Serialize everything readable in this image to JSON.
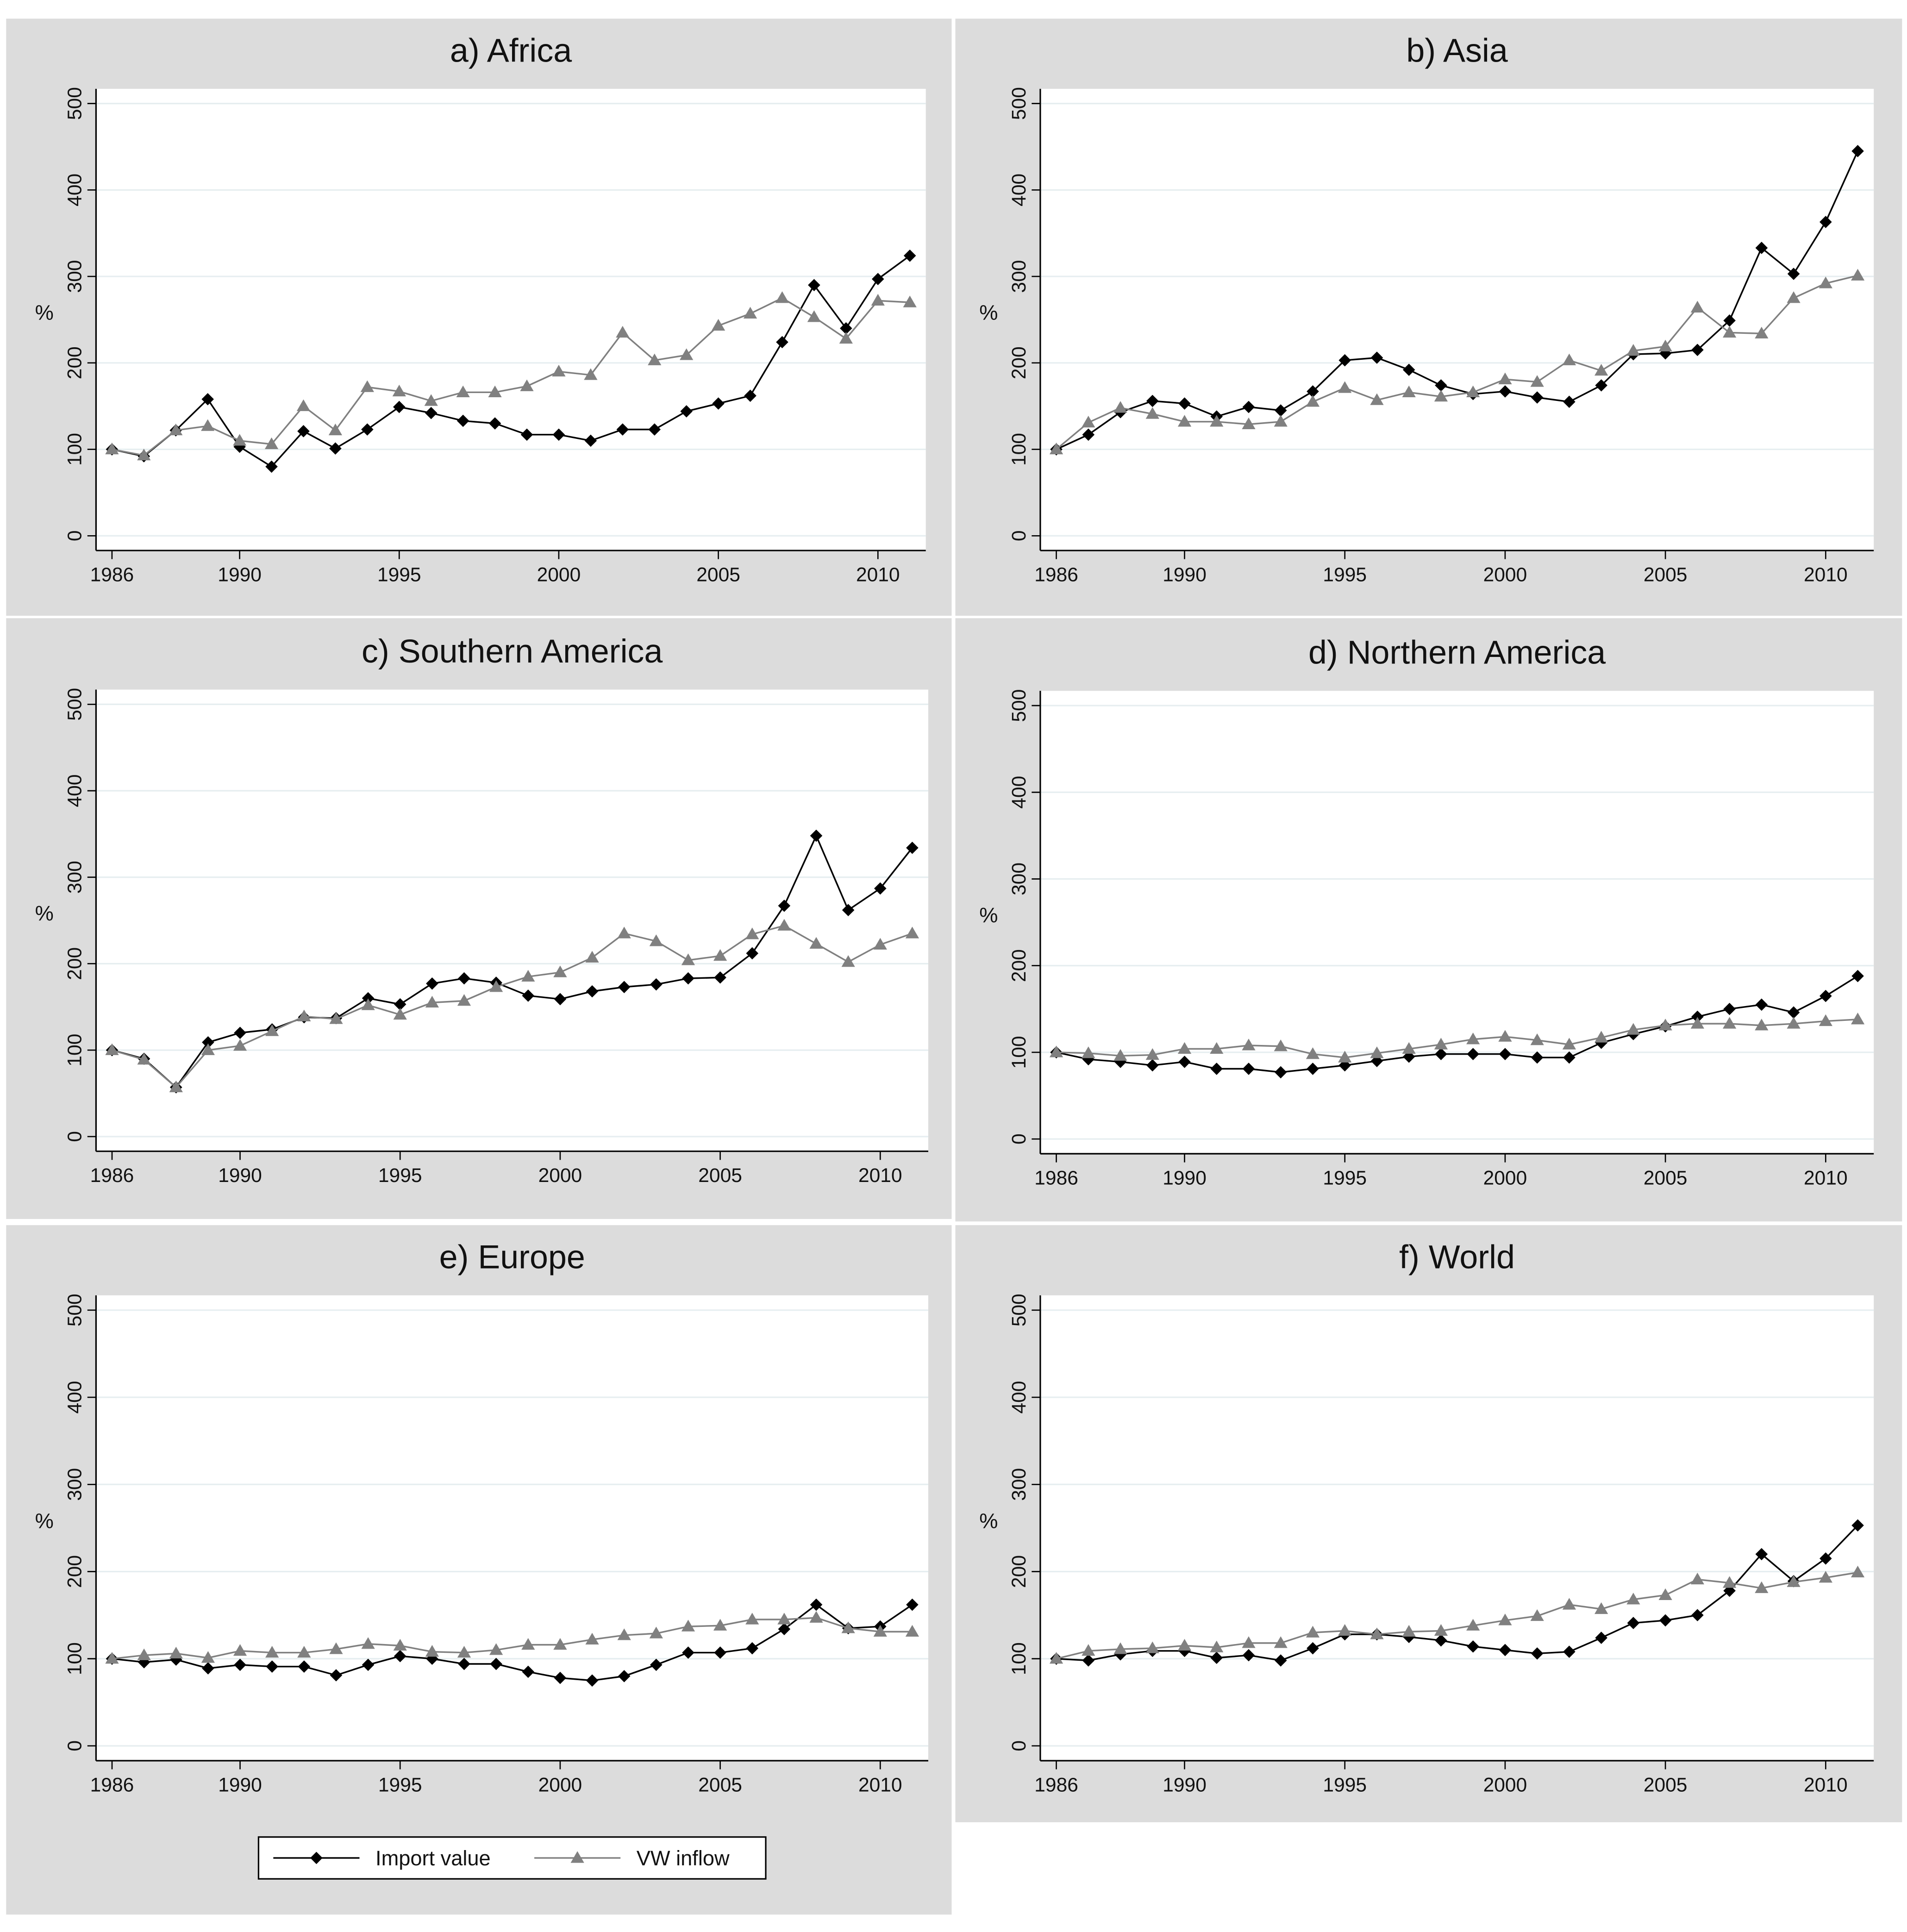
{
  "chart_data": [
    {
      "type": "line",
      "title": "a) Africa",
      "ylabel": "%",
      "legend_position": "bottom",
      "grid": true,
      "x": [
        1986,
        1987,
        1988,
        1989,
        1990,
        1991,
        1992,
        1993,
        1994,
        1995,
        1996,
        1997,
        1998,
        1999,
        2000,
        2001,
        2002,
        2003,
        2004,
        2005,
        2006,
        2007,
        2008,
        2009,
        2010,
        2011
      ],
      "xlim": [
        1985.5,
        2011.5
      ],
      "xticks": [
        1986,
        1990,
        1995,
        2000,
        2005,
        2010
      ],
      "ylim": [
        -17,
        517
      ],
      "yticks": [
        0,
        100,
        200,
        300,
        400,
        500
      ],
      "series": [
        {
          "name": "Import value",
          "color": "#000000",
          "marker": "diamond",
          "values": [
            100,
            92,
            122,
            158,
            103,
            80,
            121,
            101,
            123,
            149,
            142,
            133,
            130,
            117,
            117,
            110,
            123,
            123,
            144,
            153,
            162,
            224,
            290,
            240,
            297,
            324
          ]
        },
        {
          "name": "VW inflow",
          "color": "#808080",
          "marker": "triangle",
          "values": [
            100,
            93,
            122,
            127,
            110,
            106,
            150,
            122,
            172,
            167,
            156,
            166,
            166,
            173,
            190,
            186,
            235,
            203,
            209,
            243,
            257,
            275,
            253,
            228,
            272,
            270
          ]
        }
      ]
    },
    {
      "type": "line",
      "title": "b) Asia",
      "ylabel": "%",
      "grid": true,
      "x": [
        1986,
        1987,
        1988,
        1989,
        1990,
        1991,
        1992,
        1993,
        1994,
        1995,
        1996,
        1997,
        1998,
        1999,
        2000,
        2001,
        2002,
        2003,
        2004,
        2005,
        2006,
        2007,
        2008,
        2009,
        2010,
        2011
      ],
      "xlim": [
        1985.5,
        2011.5
      ],
      "xticks": [
        1986,
        1990,
        1995,
        2000,
        2005,
        2010
      ],
      "ylim": [
        -17,
        517
      ],
      "yticks": [
        0,
        100,
        200,
        300,
        400,
        500
      ],
      "series": [
        {
          "color": "#000000",
          "marker": "diamond",
          "values": [
            100,
            117,
            143,
            156,
            153,
            138,
            149,
            145,
            167,
            203,
            206,
            192,
            174,
            164,
            167,
            160,
            155,
            174,
            210,
            211,
            215,
            249,
            333,
            303,
            363,
            445
          ]
        },
        {
          "color": "#808080",
          "marker": "triangle",
          "values": [
            100,
            131,
            148,
            141,
            132,
            132,
            129,
            132,
            155,
            171,
            157,
            166,
            161,
            166,
            181,
            178,
            203,
            191,
            214,
            219,
            264,
            235,
            234,
            275,
            292,
            301
          ]
        }
      ]
    },
    {
      "type": "line",
      "title": "c) Southern America",
      "ylabel": "%",
      "grid": true,
      "x": [
        1986,
        1987,
        1988,
        1989,
        1990,
        1991,
        1992,
        1993,
        1994,
        1995,
        1996,
        1997,
        1998,
        1999,
        2000,
        2001,
        2002,
        2003,
        2004,
        2005,
        2006,
        2007,
        2008,
        2009,
        2010,
        2011
      ],
      "xlim": [
        1985.5,
        2011.5
      ],
      "xticks": [
        1986,
        1990,
        1995,
        2000,
        2005,
        2010
      ],
      "ylim": [
        -17,
        517
      ],
      "yticks": [
        0,
        100,
        200,
        300,
        400,
        500
      ],
      "series": [
        {
          "color": "#000000",
          "marker": "diamond",
          "values": [
            100,
            90,
            57,
            109,
            120,
            124,
            138,
            137,
            160,
            153,
            177,
            183,
            178,
            163,
            159,
            168,
            173,
            176,
            183,
            184,
            212,
            267,
            348,
            262,
            287,
            334
          ]
        },
        {
          "color": "#808080",
          "marker": "triangle",
          "values": [
            100,
            89,
            57,
            100,
            105,
            122,
            139,
            136,
            152,
            141,
            155,
            157,
            173,
            185,
            190,
            207,
            235,
            226,
            204,
            209,
            234,
            244,
            223,
            202,
            222,
            235
          ]
        }
      ]
    },
    {
      "type": "line",
      "title": "d) Northern America",
      "ylabel": "%",
      "grid": true,
      "x": [
        1986,
        1987,
        1988,
        1989,
        1990,
        1991,
        1992,
        1993,
        1994,
        1995,
        1996,
        1997,
        1998,
        1999,
        2000,
        2001,
        2002,
        2003,
        2004,
        2005,
        2006,
        2007,
        2008,
        2009,
        2010,
        2011
      ],
      "xlim": [
        1985.5,
        2011.5
      ],
      "xticks": [
        1986,
        1990,
        1995,
        2000,
        2005,
        2010
      ],
      "ylim": [
        -17,
        517
      ],
      "yticks": [
        0,
        100,
        200,
        300,
        400,
        500
      ],
      "series": [
        {
          "color": "#000000",
          "marker": "diamond",
          "values": [
            100,
            92,
            89,
            85,
            89,
            81,
            81,
            77,
            81,
            85,
            90,
            95,
            98,
            98,
            98,
            94,
            94,
            111,
            121,
            130,
            141,
            150,
            155,
            146,
            165,
            188
          ]
        },
        {
          "color": "#808080",
          "marker": "triangle",
          "values": [
            100,
            99,
            96,
            97,
            104,
            104,
            108,
            107,
            98,
            94,
            99,
            104,
            109,
            115,
            118,
            114,
            109,
            117,
            126,
            131,
            133,
            133,
            131,
            133,
            136,
            138
          ]
        }
      ]
    },
    {
      "type": "line",
      "title": "e) Europe",
      "ylabel": "%",
      "grid": true,
      "x": [
        1986,
        1987,
        1988,
        1989,
        1990,
        1991,
        1992,
        1993,
        1994,
        1995,
        1996,
        1997,
        1998,
        1999,
        2000,
        2001,
        2002,
        2003,
        2004,
        2005,
        2006,
        2007,
        2008,
        2009,
        2010,
        2011
      ],
      "xlim": [
        1985.5,
        2011.5
      ],
      "xticks": [
        1986,
        1990,
        1995,
        2000,
        2005,
        2010
      ],
      "ylim": [
        -17,
        517
      ],
      "yticks": [
        0,
        100,
        200,
        300,
        400,
        500
      ],
      "series": [
        {
          "color": "#000000",
          "marker": "diamond",
          "values": [
            100,
            96,
            99,
            89,
            93,
            91,
            91,
            81,
            93,
            103,
            100,
            94,
            94,
            85,
            78,
            75,
            80,
            93,
            107,
            107,
            112,
            134,
            162,
            135,
            137,
            162
          ]
        },
        {
          "color": "#808080",
          "marker": "triangle",
          "values": [
            100,
            104,
            106,
            101,
            109,
            107,
            107,
            111,
            117,
            115,
            108,
            107,
            110,
            116,
            116,
            122,
            127,
            129,
            137,
            138,
            145,
            145,
            147,
            135,
            131,
            131
          ]
        }
      ]
    },
    {
      "type": "line",
      "title": "f) World",
      "ylabel": "%",
      "grid": true,
      "x": [
        1986,
        1987,
        1988,
        1989,
        1990,
        1991,
        1992,
        1993,
        1994,
        1995,
        1996,
        1997,
        1998,
        1999,
        2000,
        2001,
        2002,
        2003,
        2004,
        2005,
        2006,
        2007,
        2008,
        2009,
        2010,
        2011
      ],
      "xlim": [
        1985.5,
        2011.5
      ],
      "xticks": [
        1986,
        1990,
        1995,
        2000,
        2005,
        2010
      ],
      "ylim": [
        -17,
        517
      ],
      "yticks": [
        0,
        100,
        200,
        300,
        400,
        500
      ],
      "series": [
        {
          "color": "#000000",
          "marker": "diamond",
          "values": [
            100,
            98,
            105,
            109,
            109,
            101,
            104,
            98,
            112,
            128,
            128,
            125,
            121,
            114,
            110,
            106,
            108,
            124,
            141,
            144,
            150,
            178,
            220,
            189,
            215,
            253
          ]
        },
        {
          "color": "#808080",
          "marker": "triangle",
          "values": [
            100,
            109,
            111,
            112,
            115,
            113,
            118,
            118,
            130,
            132,
            128,
            131,
            132,
            138,
            144,
            149,
            162,
            157,
            168,
            173,
            191,
            187,
            181,
            188,
            193,
            199
          ]
        }
      ]
    }
  ]
}
